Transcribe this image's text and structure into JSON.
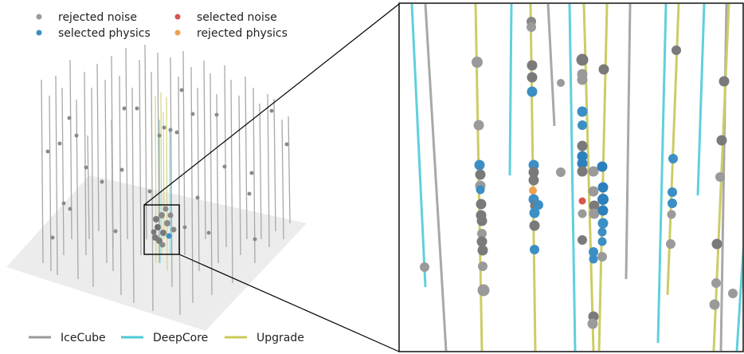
{
  "legend_hits": [
    {
      "label": "rejected noise",
      "color": "#9a9a9a"
    },
    {
      "label": "selected physics",
      "color": "#3b8fc4"
    },
    {
      "label": "selected noise",
      "color": "#d9534f"
    },
    {
      "label": "rejected physics",
      "color": "#f0a050"
    }
  ],
  "legend_strings": [
    {
      "label": "IceCube",
      "color": "#999999"
    },
    {
      "label": "DeepCore",
      "color": "#4fc9d9"
    },
    {
      "label": "Upgrade",
      "color": "#c9c95a"
    }
  ]
}
